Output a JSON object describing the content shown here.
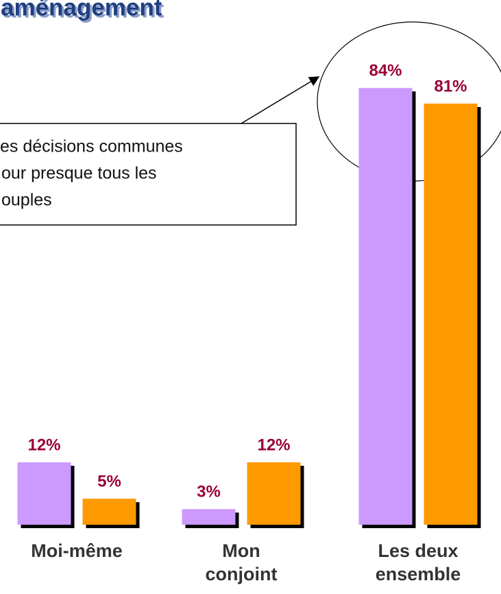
{
  "chart_data": {
    "type": "bar",
    "title": "aménagement",
    "annotation": [
      "es décisions communes",
      "our presque tous les",
      "ouples"
    ],
    "categories": [
      "Moi-même",
      "Mon conjoint",
      "Les deux ensemble"
    ],
    "series": [
      {
        "color": "#cc99ff",
        "values": [
          12,
          3,
          84
        ],
        "value_labels": [
          "12%",
          "3%",
          "84%"
        ]
      },
      {
        "color": "#ff9900",
        "values": [
          5,
          12,
          81
        ],
        "value_labels": [
          "5%",
          "12%",
          "81%"
        ]
      }
    ],
    "value_label_color": "#990033",
    "ylim": [
      0,
      100
    ]
  }
}
